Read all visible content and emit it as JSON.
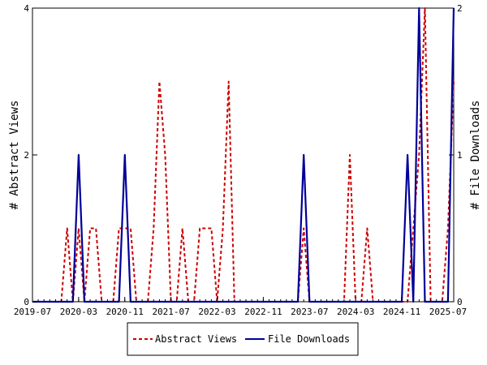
{
  "chart_data": {
    "type": "line",
    "x_start": "2019-07",
    "x_end": "2025-08",
    "x_tick_labels": [
      "2019-07",
      "2020-03",
      "2020-11",
      "2021-07",
      "2022-03",
      "2022-11",
      "2023-07",
      "2024-03",
      "2024-11",
      "2025-07"
    ],
    "y_left": {
      "label": "# Abstract Views",
      "ylim": [
        0,
        4
      ],
      "ticks": [
        0,
        2,
        4
      ]
    },
    "y_right": {
      "label": "# File Downloads",
      "ylim": [
        0,
        2
      ],
      "ticks": [
        0,
        1,
        2
      ]
    },
    "grid": false,
    "legend_position": "bottom-center",
    "series": [
      {
        "name": "Abstract Views",
        "axis": "left",
        "color": "#cc0000",
        "style": "dashed",
        "x": [
          "2019-07",
          "2019-08",
          "2019-09",
          "2019-10",
          "2019-11",
          "2019-12",
          "2020-01",
          "2020-02",
          "2020-03",
          "2020-04",
          "2020-05",
          "2020-06",
          "2020-07",
          "2020-08",
          "2020-09",
          "2020-10",
          "2020-11",
          "2020-12",
          "2021-01",
          "2021-02",
          "2021-03",
          "2021-04",
          "2021-05",
          "2021-06",
          "2021-07",
          "2021-08",
          "2021-09",
          "2021-10",
          "2021-11",
          "2021-12",
          "2022-01",
          "2022-02",
          "2022-03",
          "2022-04",
          "2022-05",
          "2022-06",
          "2022-07",
          "2022-08",
          "2022-09",
          "2022-10",
          "2022-11",
          "2022-12",
          "2023-01",
          "2023-02",
          "2023-03",
          "2023-04",
          "2023-05",
          "2023-06",
          "2023-07",
          "2023-08",
          "2023-09",
          "2023-10",
          "2023-11",
          "2023-12",
          "2024-01",
          "2024-02",
          "2024-03",
          "2024-04",
          "2024-05",
          "2024-06",
          "2024-07",
          "2024-08",
          "2024-09",
          "2024-10",
          "2024-11",
          "2024-12",
          "2025-01",
          "2025-02",
          "2025-03",
          "2025-04",
          "2025-05",
          "2025-06",
          "2025-07",
          "2025-08"
        ],
        "values": [
          0,
          0,
          0,
          0,
          0,
          0,
          1,
          0,
          1,
          0,
          1,
          1,
          0,
          0,
          0,
          1,
          1,
          1,
          0,
          0,
          0,
          1,
          3,
          2,
          0,
          0,
          1,
          0,
          0,
          1,
          1,
          1,
          0,
          1,
          3,
          0,
          0,
          0,
          0,
          0,
          0,
          0,
          0,
          0,
          0,
          0,
          0,
          1,
          0,
          0,
          0,
          0,
          0,
          0,
          0,
          2,
          0,
          0,
          1,
          0,
          0,
          0,
          0,
          0,
          0,
          0,
          1,
          2,
          4,
          0,
          0,
          0,
          1,
          3
        ]
      },
      {
        "name": "File Downloads",
        "axis": "right",
        "color": "#000099",
        "style": "solid",
        "x": [
          "2019-07",
          "2019-08",
          "2019-09",
          "2019-10",
          "2019-11",
          "2019-12",
          "2020-01",
          "2020-02",
          "2020-03",
          "2020-04",
          "2020-05",
          "2020-06",
          "2020-07",
          "2020-08",
          "2020-09",
          "2020-10",
          "2020-11",
          "2020-12",
          "2021-01",
          "2021-02",
          "2021-03",
          "2021-04",
          "2021-05",
          "2021-06",
          "2021-07",
          "2021-08",
          "2021-09",
          "2021-10",
          "2021-11",
          "2021-12",
          "2022-01",
          "2022-02",
          "2022-03",
          "2022-04",
          "2022-05",
          "2022-06",
          "2022-07",
          "2022-08",
          "2022-09",
          "2022-10",
          "2022-11",
          "2022-12",
          "2023-01",
          "2023-02",
          "2023-03",
          "2023-04",
          "2023-05",
          "2023-06",
          "2023-07",
          "2023-08",
          "2023-09",
          "2023-10",
          "2023-11",
          "2023-12",
          "2024-01",
          "2024-02",
          "2024-03",
          "2024-04",
          "2024-05",
          "2024-06",
          "2024-07",
          "2024-08",
          "2024-09",
          "2024-10",
          "2024-11",
          "2024-12",
          "2025-01",
          "2025-02",
          "2025-03",
          "2025-04",
          "2025-05",
          "2025-06",
          "2025-07",
          "2025-08"
        ],
        "values": [
          0,
          0,
          0,
          0,
          0,
          0,
          0,
          0,
          1,
          0,
          0,
          0,
          0,
          0,
          0,
          0,
          1,
          0,
          0,
          0,
          0,
          0,
          0,
          0,
          0,
          0,
          0,
          0,
          0,
          0,
          0,
          0,
          0,
          0,
          0,
          0,
          0,
          0,
          0,
          0,
          0,
          0,
          0,
          0,
          0,
          0,
          0,
          1,
          0,
          0,
          0,
          0,
          0,
          0,
          0,
          0,
          0,
          0,
          0,
          0,
          0,
          0,
          0,
          0,
          0,
          1,
          0,
          2,
          0,
          0,
          0,
          0,
          0,
          2
        ]
      }
    ]
  }
}
